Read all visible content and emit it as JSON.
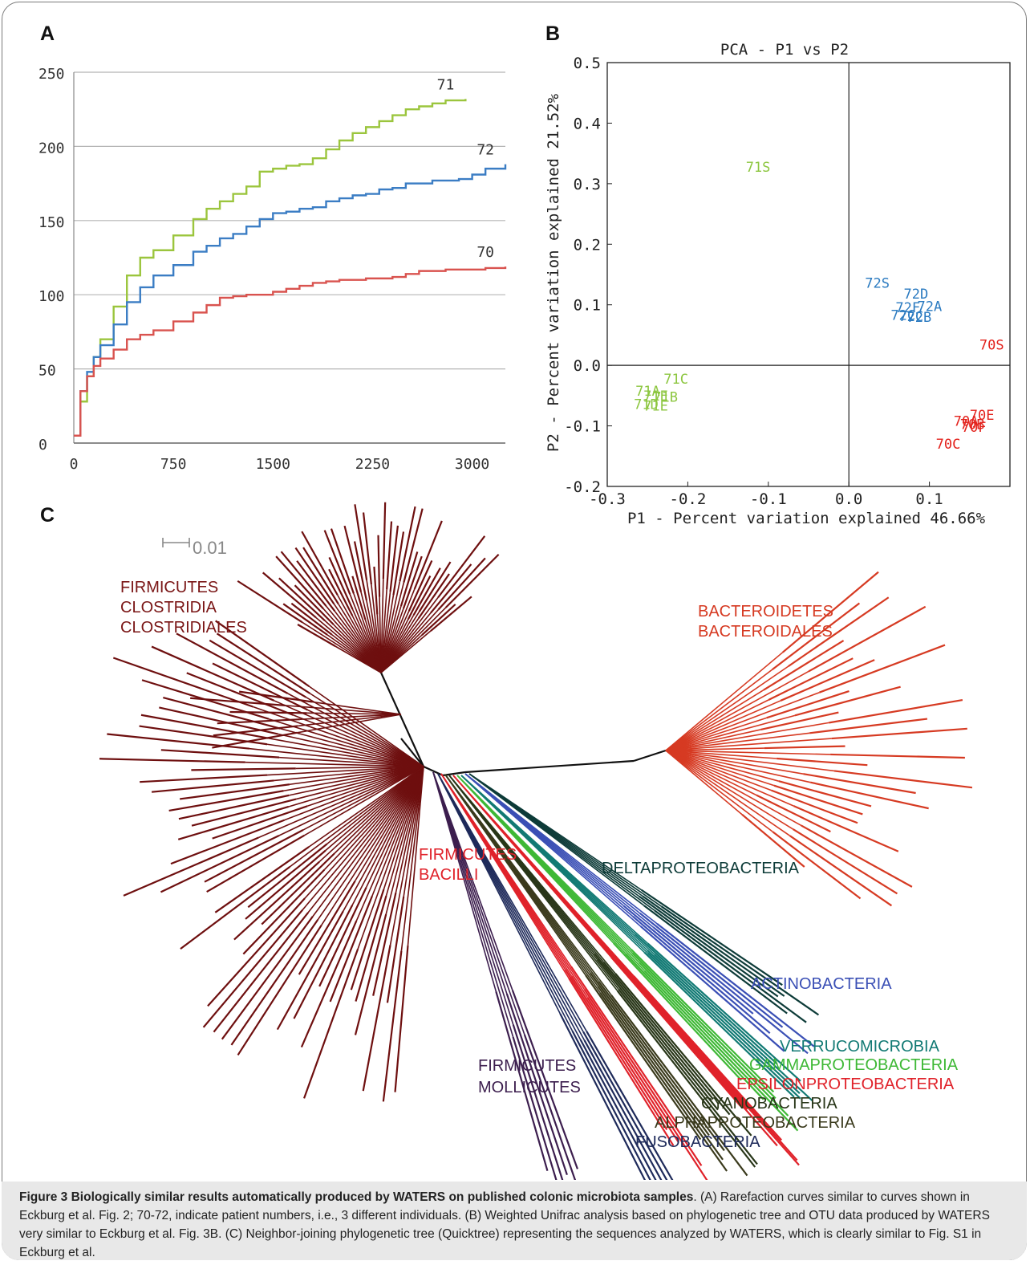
{
  "panels": {
    "a": "A",
    "b": "B",
    "c": "C"
  },
  "colors": {
    "s70": "#d9534f",
    "s71": "#9bc53d",
    "s72": "#3b7dc4",
    "pca70": "#e3221c",
    "pca71": "#8cc63f",
    "pca72": "#2a7ac0"
  },
  "chart_data": [
    {
      "type": "line",
      "title": "",
      "xlabel": "",
      "ylabel": "",
      "xlim": [
        0,
        3250
      ],
      "ylim": [
        0,
        250
      ],
      "x_ticks": [
        0,
        750,
        1500,
        2250,
        3000
      ],
      "y_ticks": [
        0,
        50,
        100,
        150,
        200,
        250
      ],
      "grid": "horizontal",
      "series": [
        {
          "name": "71",
          "color": "#9bc53d",
          "x": [
            0,
            50,
            100,
            150,
            200,
            300,
            400,
            500,
            600,
            750,
            900,
            1000,
            1100,
            1200,
            1300,
            1400,
            1500,
            1600,
            1700,
            1800,
            1900,
            2000,
            2100,
            2200,
            2300,
            2400,
            2500,
            2600,
            2700,
            2800,
            2950
          ],
          "y": [
            5,
            28,
            45,
            58,
            70,
            92,
            113,
            125,
            130,
            140,
            151,
            158,
            163,
            168,
            173,
            183,
            185,
            187,
            188,
            192,
            198,
            204,
            209,
            213,
            217,
            221,
            225,
            227,
            229,
            231,
            232
          ]
        },
        {
          "name": "72",
          "color": "#3b7dc4",
          "x": [
            0,
            50,
            100,
            150,
            200,
            300,
            400,
            500,
            600,
            750,
            900,
            1000,
            1100,
            1200,
            1300,
            1400,
            1500,
            1600,
            1700,
            1800,
            1900,
            2000,
            2100,
            2200,
            2300,
            2400,
            2500,
            2600,
            2700,
            2800,
            2900,
            3000,
            3100,
            3250
          ],
          "y": [
            5,
            35,
            48,
            58,
            66,
            80,
            95,
            105,
            113,
            120,
            129,
            133,
            138,
            141,
            146,
            151,
            155,
            156,
            158,
            159,
            163,
            165,
            167,
            168,
            171,
            172,
            175,
            175,
            177,
            177,
            178,
            181,
            185,
            188
          ]
        },
        {
          "name": "70",
          "color": "#d9534f",
          "x": [
            0,
            50,
            100,
            150,
            200,
            300,
            400,
            500,
            600,
            750,
            900,
            1000,
            1100,
            1200,
            1300,
            1400,
            1500,
            1600,
            1700,
            1800,
            1900,
            2000,
            2100,
            2200,
            2300,
            2400,
            2500,
            2600,
            2700,
            2800,
            2900,
            3000,
            3100,
            3250
          ],
          "y": [
            5,
            35,
            45,
            52,
            57,
            63,
            70,
            73,
            76,
            82,
            88,
            93,
            98,
            99,
            100,
            100,
            102,
            104,
            106,
            108,
            109,
            110,
            110,
            111,
            111,
            112,
            114,
            116,
            116,
            117,
            117,
            117,
            118,
            119
          ]
        }
      ],
      "end_labels": [
        "71",
        "72",
        "70"
      ]
    },
    {
      "type": "scatter",
      "title": "PCA - P1 vs P2",
      "xlabel": "P1 - Percent variation explained 46.66%",
      "ylabel": "P2 - Percent variation explained 21.52%",
      "xlim": [
        -0.3,
        0.2
      ],
      "ylim": [
        -0.2,
        0.5
      ],
      "x_ticks": [
        "-0.3",
        "-0.2",
        "-0.1",
        "0.0",
        "0.1"
      ],
      "y_ticks": [
        "-0.2",
        "-0.1",
        "0.0",
        "0.1",
        "0.2",
        "0.3",
        "0.4",
        "0.5"
      ],
      "points": [
        {
          "label": "71S",
          "x": -0.128,
          "y": 0.32,
          "group": "71"
        },
        {
          "label": "71C",
          "x": -0.23,
          "y": -0.03,
          "group": "71"
        },
        {
          "label": "71A",
          "x": -0.265,
          "y": -0.05,
          "group": "71"
        },
        {
          "label": "71B",
          "x": -0.243,
          "y": -0.06,
          "group": "71"
        },
        {
          "label": "71E",
          "x": -0.255,
          "y": -0.058,
          "group": "71"
        },
        {
          "label": "71D",
          "x": -0.267,
          "y": -0.072,
          "group": "71"
        },
        {
          "label": "71E",
          "x": -0.255,
          "y": -0.075,
          "group": "71"
        },
        {
          "label": "72S",
          "x": 0.02,
          "y": 0.128,
          "group": "72"
        },
        {
          "label": "72D",
          "x": 0.068,
          "y": 0.11,
          "group": "72"
        },
        {
          "label": "72A",
          "x": 0.085,
          "y": 0.09,
          "group": "72"
        },
        {
          "label": "72F",
          "x": 0.058,
          "y": 0.088,
          "group": "72"
        },
        {
          "label": "72C",
          "x": 0.052,
          "y": 0.075,
          "group": "72"
        },
        {
          "label": "72C",
          "x": 0.062,
          "y": 0.073,
          "group": "72"
        },
        {
          "label": "72B",
          "x": 0.072,
          "y": 0.072,
          "group": "72"
        },
        {
          "label": "70S",
          "x": 0.162,
          "y": 0.026,
          "group": "70"
        },
        {
          "label": "70E",
          "x": 0.15,
          "y": -0.09,
          "group": "70"
        },
        {
          "label": "70A",
          "x": 0.13,
          "y": -0.1,
          "group": "70"
        },
        {
          "label": "70B",
          "x": 0.138,
          "y": -0.105,
          "group": "70"
        },
        {
          "label": "70F",
          "x": 0.14,
          "y": -0.11,
          "group": "70"
        },
        {
          "label": "70C",
          "x": 0.108,
          "y": -0.138,
          "group": "70"
        }
      ]
    }
  ],
  "tree": {
    "scale_label": "0.01",
    "labels": [
      {
        "text": "FIRMICUTES",
        "color": "#7a1616"
      },
      {
        "text": "CLOSTRIDIA",
        "color": "#7a1616"
      },
      {
        "text": "CLOSTRIDIALES",
        "color": "#7a1616"
      },
      {
        "text": "BACTEROIDETES",
        "color": "#d63a22"
      },
      {
        "text": "BACTEROIDALES",
        "color": "#d63a22"
      },
      {
        "text": "FIRMICUTES",
        "color": "#e0222a"
      },
      {
        "text": "BACILLI",
        "color": "#e0222a"
      },
      {
        "text": "DELTAPROTEOBACTERIA",
        "color": "#0d3b38"
      },
      {
        "text": "ACTINOBACTERIA",
        "color": "#3a4fb5"
      },
      {
        "text": "VERRUCOMICROBIA",
        "color": "#127a74"
      },
      {
        "text": "GAMMAPROTEOBACTERIA",
        "color": "#3eb835"
      },
      {
        "text": "EPSILONPROTEOBACTERIA",
        "color": "#e0222a"
      },
      {
        "text": "CYANOBACTERIA",
        "color": "#283618"
      },
      {
        "text": "ALPHAPROTEOBACTERIA",
        "color": "#3a3a1c"
      },
      {
        "text": "FUSOBACTERIA",
        "color": "#1e2a5a"
      },
      {
        "text": "FIRMICUTES",
        "color": "#3c1e4e"
      },
      {
        "text": "MOLLICUTES",
        "color": "#3c1e4e"
      }
    ]
  },
  "caption": {
    "title": "Figure 3 Biologically similar results automatically produced by WATERS on published colonic microbiota samples",
    "body": ". (A) Rarefaction curves similar to curves shown in Eckburg et al. Fig. 2; 70-72, indicate patient numbers, i.e., 3 different individuals. (B) Weighted Unifrac analysis based on phylogenetic tree and OTU data produced by WATERS very similar to Eckburg et al. Fig. 3B. (C) Neighbor-joining phylogenetic tree (Quicktree) representing the sequences analyzed by WATERS, which is clearly similar to Fig. S1 in Eckburg et al."
  }
}
